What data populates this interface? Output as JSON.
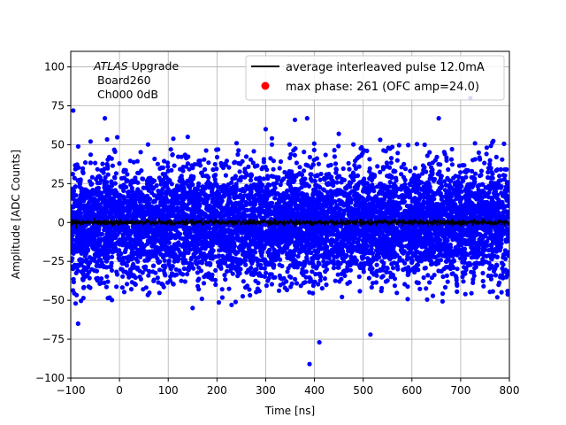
{
  "chart_data": {
    "type": "scatter",
    "xlabel": "Time [ns]",
    "ylabel": "Amplitude [ADC Counts]",
    "xlim": [
      -100,
      800
    ],
    "ylim": [
      -100,
      110
    ],
    "xticks": [
      -100,
      0,
      100,
      200,
      300,
      400,
      500,
      600,
      700,
      800
    ],
    "yticks": [
      -100,
      -75,
      -50,
      -25,
      0,
      25,
      50,
      75,
      100
    ],
    "xtick_labels": [
      "−100",
      "0",
      "100",
      "200",
      "300",
      "400",
      "500",
      "600",
      "700",
      "800"
    ],
    "ytick_labels": [
      "−100",
      "−75",
      "−50",
      "−25",
      "0",
      "25",
      "50",
      "75",
      "100"
    ],
    "grid": true,
    "legend_position": "top-right",
    "annotation": {
      "line1_italic": "ATLAS",
      "line1_rest": " Upgrade",
      "line2": "Board260",
      "line3": "Ch000 0dB"
    },
    "series": [
      {
        "name": "average interleaved pulse 12.0mA",
        "kind": "line",
        "color": "#000000",
        "mean": 0,
        "spread": 1.5,
        "step": 0.5
      },
      {
        "name": "max phase: 261 (OFC amp=24.0)",
        "kind": "scatter",
        "color": "#0000ff",
        "legend_marker_color": "#ff0000",
        "mean": 0,
        "sigma": 18,
        "count": 7000,
        "outliers": [
          [
            -95,
            72
          ],
          [
            -30,
            67
          ],
          [
            360,
            66
          ],
          [
            385,
            67
          ],
          [
            655,
            67
          ],
          [
            720,
            80
          ],
          [
            390,
            -91
          ],
          [
            410,
            -77
          ],
          [
            515,
            -72
          ],
          [
            -85,
            -65
          ],
          [
            -90,
            -52
          ],
          [
            150,
            -55
          ],
          [
            230,
            -53
          ],
          [
            300,
            60
          ],
          [
            140,
            55
          ],
          [
            450,
            57
          ]
        ]
      }
    ]
  }
}
